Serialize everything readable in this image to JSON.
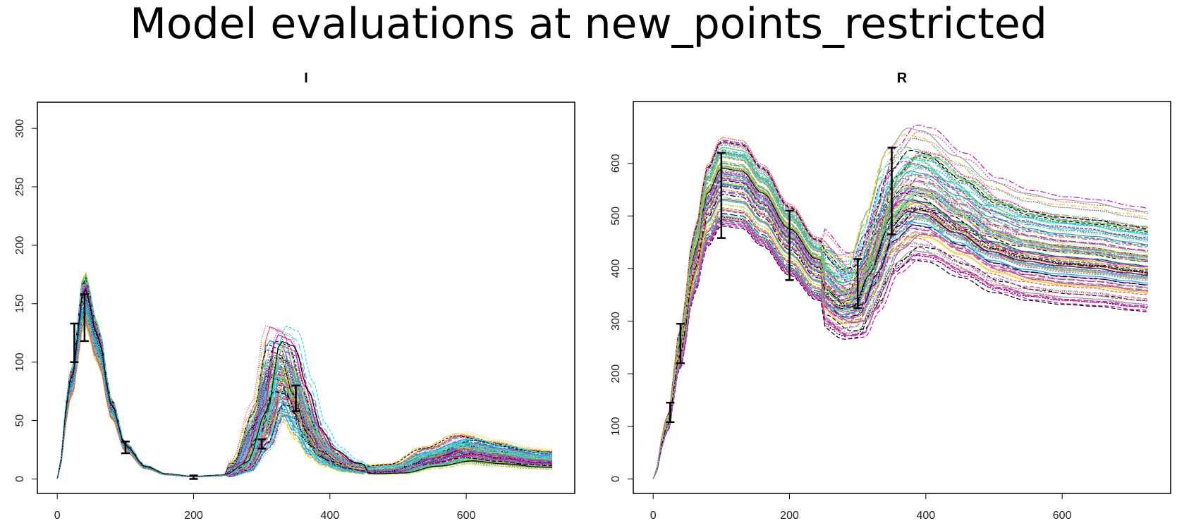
{
  "title": "Model evaluations at new_points_restricted",
  "colors": {
    "palette": [
      "#000000",
      "#DF536B",
      "#61D04F",
      "#2297E6",
      "#28E2E5",
      "#CD0BBC",
      "#F5C710",
      "#9E9E9E"
    ],
    "error_bar": "#000000",
    "frame": "#000000"
  },
  "chart_data": [
    {
      "type": "line",
      "panel_title": "I",
      "xlim": [
        0,
        730
      ],
      "ylim": [
        0,
        310
      ],
      "x_ticks": [
        0,
        200,
        400,
        600
      ],
      "y_ticks": [
        0,
        50,
        100,
        150,
        200,
        250,
        300
      ],
      "curve_count": 120,
      "series": [
        {
          "x": [
            0,
            20,
            40,
            60,
            80,
            100,
            130,
            160,
            200,
            240,
            270,
            300,
            320,
            340,
            360,
            380,
            400,
            430,
            460,
            500,
            550,
            600,
            650,
            700,
            730
          ],
          "y": [
            0,
            80,
            155,
            115,
            60,
            27,
            10,
            4,
            2,
            3,
            10,
            42,
            85,
            82,
            55,
            30,
            18,
            10,
            7,
            8,
            17,
            24,
            20,
            16,
            15
          ]
        }
      ],
      "error_bars": [
        {
          "x": 25,
          "low": 100,
          "high": 133
        },
        {
          "x": 40,
          "low": 118,
          "high": 158
        },
        {
          "x": 100,
          "low": 22,
          "high": 32
        },
        {
          "x": 200,
          "low": 0,
          "high": 3
        },
        {
          "x": 300,
          "low": 26,
          "high": 34
        },
        {
          "x": 350,
          "low": 58,
          "high": 80
        }
      ]
    },
    {
      "type": "line",
      "panel_title": "R",
      "xlim": [
        0,
        730
      ],
      "ylim": [
        0,
        690
      ],
      "x_ticks": [
        0,
        200,
        400,
        600
      ],
      "y_ticks": [
        0,
        100,
        200,
        300,
        400,
        500,
        600
      ],
      "curve_count": 120,
      "series": [
        {
          "x": [
            0,
            20,
            40,
            60,
            80,
            100,
            130,
            160,
            200,
            240,
            280,
            300,
            320,
            350,
            380,
            400,
            450,
            500,
            550,
            600,
            650,
            700,
            730
          ],
          "y": [
            0,
            100,
            250,
            410,
            520,
            565,
            560,
            520,
            455,
            400,
            360,
            365,
            430,
            530,
            565,
            560,
            520,
            480,
            460,
            450,
            445,
            435,
            430
          ]
        }
      ],
      "error_bars": [
        {
          "x": 25,
          "low": 108,
          "high": 145
        },
        {
          "x": 40,
          "low": 220,
          "high": 295
        },
        {
          "x": 100,
          "low": 458,
          "high": 620
        },
        {
          "x": 200,
          "low": 378,
          "high": 510
        },
        {
          "x": 300,
          "low": 325,
          "high": 418
        },
        {
          "x": 350,
          "low": 465,
          "high": 630
        }
      ]
    }
  ]
}
